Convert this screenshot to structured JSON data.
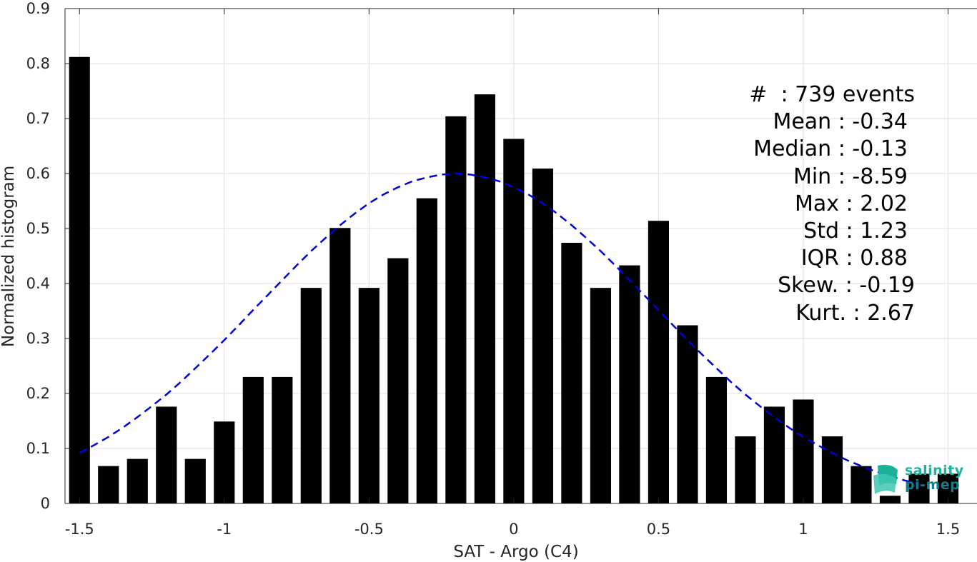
{
  "chart_data": {
    "type": "bar",
    "xlabel": "SAT - Argo (C4)",
    "ylabel": "Normalized histogram",
    "xlim": [
      -1.55,
      1.6
    ],
    "ylim": [
      0,
      0.9
    ],
    "xticks": [
      -1.5,
      -1,
      -0.5,
      0,
      0.5,
      1,
      1.5
    ],
    "xtick_labels": [
      "-1.5",
      "-1",
      "-0.5",
      "0",
      "0.5",
      "1",
      "1.5"
    ],
    "yticks": [
      0,
      0.1,
      0.2,
      0.3,
      0.4,
      0.5,
      0.6,
      0.7,
      0.8,
      0.9
    ],
    "ytick_labels": [
      "0",
      "0.1",
      "0.2",
      "0.3",
      "0.4",
      "0.5",
      "0.6",
      "0.7",
      "0.8",
      "0.9"
    ],
    "grid": true,
    "bar_color": "#000000",
    "bars": {
      "x": [
        -1.5,
        -1.4,
        -1.3,
        -1.2,
        -1.1,
        -1.0,
        -0.9,
        -0.8,
        -0.7,
        -0.6,
        -0.5,
        -0.4,
        -0.3,
        -0.2,
        -0.1,
        0.0,
        0.1,
        0.2,
        0.3,
        0.4,
        0.5,
        0.6,
        0.7,
        0.8,
        0.9,
        1.0,
        1.1,
        1.2,
        1.3,
        1.4,
        1.5
      ],
      "values": [
        0.812,
        0.068,
        0.081,
        0.176,
        0.081,
        0.149,
        0.23,
        0.23,
        0.392,
        0.501,
        0.392,
        0.446,
        0.555,
        0.704,
        0.744,
        0.663,
        0.609,
        0.474,
        0.392,
        0.433,
        0.514,
        0.324,
        0.23,
        0.122,
        0.176,
        0.189,
        0.122,
        0.068,
        0.014,
        0.054,
        0.054
      ]
    },
    "fit_curve": {
      "style": "dashed",
      "color": "#0000dd",
      "x": [
        -1.5,
        -1.45,
        -1.4,
        -1.35,
        -1.3,
        -1.25,
        -1.2,
        -1.15,
        -1.1,
        -1.05,
        -1.0,
        -0.95,
        -0.9,
        -0.85,
        -0.8,
        -0.75,
        -0.7,
        -0.65,
        -0.6,
        -0.55,
        -0.5,
        -0.45,
        -0.4,
        -0.35,
        -0.3,
        -0.25,
        -0.2,
        -0.15,
        -0.1,
        -0.05,
        0.0,
        0.05,
        0.1,
        0.15,
        0.2,
        0.25,
        0.3,
        0.35,
        0.4,
        0.45,
        0.5,
        0.55,
        0.6,
        0.65,
        0.7,
        0.75,
        0.8,
        0.85,
        0.9,
        0.95,
        1.0,
        1.05,
        1.1,
        1.15,
        1.2,
        1.25,
        1.3,
        1.35,
        1.4
      ],
      "y": [
        0.092,
        0.106,
        0.121,
        0.138,
        0.157,
        0.177,
        0.198,
        0.221,
        0.246,
        0.271,
        0.297,
        0.324,
        0.352,
        0.379,
        0.406,
        0.433,
        0.459,
        0.483,
        0.506,
        0.527,
        0.546,
        0.562,
        0.575,
        0.586,
        0.593,
        0.598,
        0.6,
        0.598,
        0.593,
        0.586,
        0.575,
        0.562,
        0.546,
        0.527,
        0.506,
        0.483,
        0.459,
        0.433,
        0.406,
        0.379,
        0.352,
        0.324,
        0.297,
        0.271,
        0.246,
        0.221,
        0.198,
        0.177,
        0.157,
        0.138,
        0.121,
        0.106,
        0.092,
        0.079,
        0.068,
        0.058,
        0.05,
        0.042,
        0.035
      ]
    }
  },
  "stats": {
    "events": "#  : 739 events",
    "mean": "Mean : -0.34",
    "median": "Median : -0.13",
    "min": "Min : -8.59",
    "max": "Max : 2.02",
    "std": "Std : 1.23",
    "iqr": "IQR : 0.88",
    "skew": "Skew. : -0.19",
    "kurt": "Kurt. : 2.67"
  },
  "logo": {
    "word1": "salinity",
    "word2": "pi-mep"
  }
}
